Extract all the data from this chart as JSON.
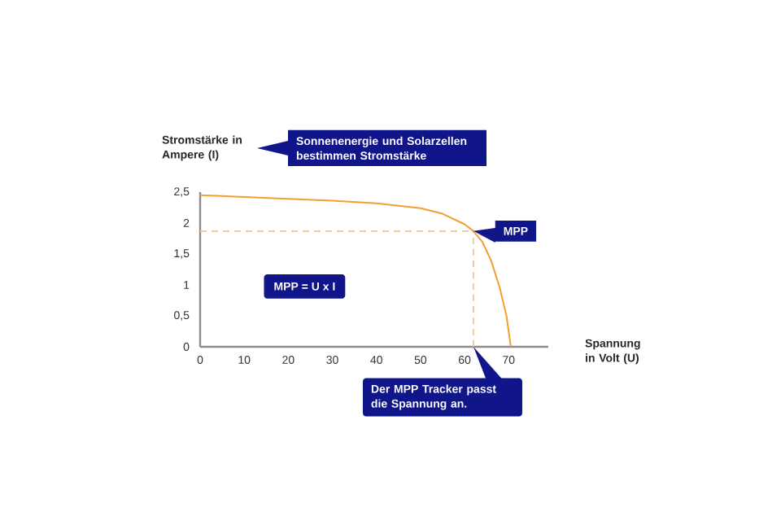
{
  "chart_data": {
    "type": "line",
    "xlabel": "Spannung in Volt (U)",
    "ylabel": "Stromstärke in Ampere (I)",
    "x": [
      0,
      10,
      20,
      30,
      40,
      50,
      55,
      60,
      62,
      64,
      66,
      68,
      69.5,
      70.5
    ],
    "series": [
      {
        "color": "#f0a030",
        "values": [
          2.45,
          2.42,
          2.39,
          2.36,
          2.32,
          2.24,
          2.15,
          1.98,
          1.87,
          1.7,
          1.4,
          0.95,
          0.5,
          0
        ]
      }
    ],
    "xlim": [
      0,
      79
    ],
    "xticks": [
      0,
      10,
      20,
      30,
      40,
      50,
      60,
      70
    ],
    "ylim": [
      0,
      2.5
    ],
    "yticks": [
      {
        "value": 0,
        "label": "0"
      },
      {
        "value": 0.5,
        "label": "0,5"
      },
      {
        "value": 1,
        "label": "1"
      },
      {
        "value": 1.5,
        "label": "1,5"
      },
      {
        "value": 2,
        "label": "2"
      },
      {
        "value": 2.5,
        "label": "2,5"
      }
    ],
    "ref_lines": [
      {
        "axis": "y",
        "value": 1.87,
        "color": "#f5c590",
        "line_style": "dashed"
      },
      {
        "axis": "x",
        "value": 62,
        "color": "#f5c590",
        "line_style": "dashed"
      }
    ],
    "annotations": [
      "Sonnenenergie und Solarzellen bestimmen Stromstärke",
      {
        "text": "MPP",
        "x": 62,
        "y": 1.87
      },
      "MPP = U x I",
      "Der MPP Tracker passt die Spannung an."
    ],
    "grid": false,
    "marker": "none",
    "line_style": "solid"
  }
}
